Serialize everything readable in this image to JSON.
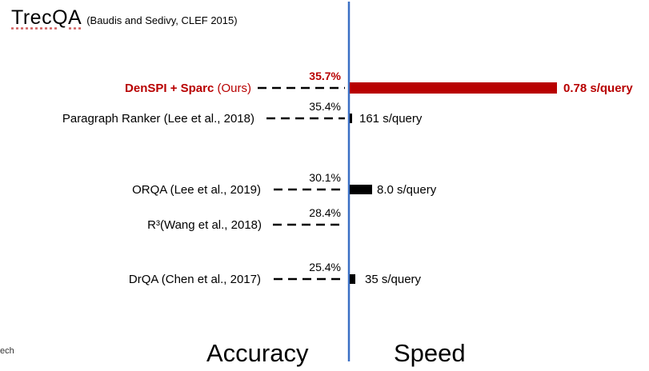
{
  "title": "TrecQA",
  "subtitle": "(Baudis and Sedivy, CLEF 2015)",
  "footer_fragment": "ech",
  "bottom_labels": {
    "left": "Accuracy",
    "right": "Speed"
  },
  "colors": {
    "highlight": "#b80000",
    "default": "#000000",
    "axis": "#3a6fc4"
  },
  "chart_data": {
    "type": "bar",
    "title": "TrecQA",
    "subtitle": "(Baudis and Sedivy, CLEF 2015)",
    "rows": [
      {
        "label": "DenSPI + Sparc",
        "suffix": " (Ours)",
        "accuracy": "35.7%",
        "speed_s_per_query": 0.78,
        "speed_label": "0.78 s/query",
        "highlight": true
      },
      {
        "label": "Paragraph Ranker (Lee et al., 2018)",
        "suffix": "",
        "accuracy": "35.4%",
        "speed_s_per_query": 161,
        "speed_label": "161 s/query",
        "highlight": false
      },
      {
        "label": "ORQA (Lee et al., 2019)",
        "suffix": "",
        "accuracy": "30.1%",
        "speed_s_per_query": 8.0,
        "speed_label": "8.0 s/query",
        "highlight": false
      },
      {
        "label": "R³(Wang et al., 2018)",
        "suffix": "",
        "accuracy": "28.4%",
        "speed_s_per_query": null,
        "speed_label": "",
        "highlight": false
      },
      {
        "label": "DrQA (Chen et al., 2017)",
        "suffix": "",
        "accuracy": "25.4%",
        "speed_s_per_query": 35,
        "speed_label": "35 s/query",
        "highlight": false
      }
    ],
    "xlabel": "Accuracy",
    "ylabel": "Speed"
  }
}
